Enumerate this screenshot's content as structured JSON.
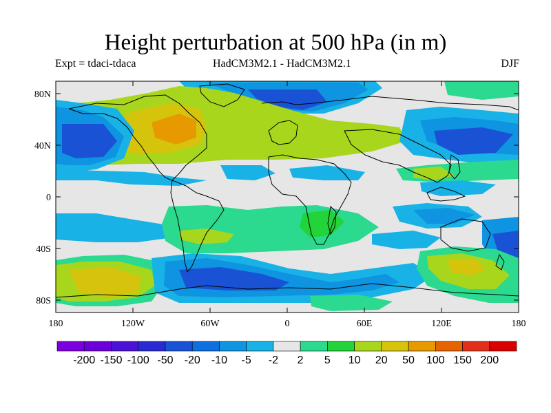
{
  "title": "Height perturbation at 500 hPa (in m)",
  "experiment": "Expt = tdaci-tdaca",
  "models": "HadCM3M2.1 - HadCM3M2.1",
  "season": "DJF",
  "lat_ticks": [
    "80N",
    "40N",
    "0",
    "40S",
    "80S"
  ],
  "lon_ticks": [
    "180",
    "120W",
    "60W",
    "0",
    "60E",
    "120E",
    "180"
  ],
  "colorbar": {
    "colors": [
      "#7a00de",
      "#6b00d8",
      "#4b12d6",
      "#2a2ad2",
      "#1a52d6",
      "#0d6fe0",
      "#0e94e0",
      "#18b2e6",
      "#e6e6e6",
      "#2bd98f",
      "#22d33a",
      "#a8d61c",
      "#d6c40c",
      "#e69a00",
      "#e66400",
      "#e0301a",
      "#da0000"
    ],
    "labels": [
      "-200",
      "-150",
      "-100",
      "-50",
      "-20",
      "-10",
      "-5",
      "-2",
      "2",
      "5",
      "10",
      "20",
      "50",
      "100",
      "150",
      "200"
    ]
  },
  "colors": {
    "background": "#e6e6e6",
    "coast": "#000000"
  }
}
